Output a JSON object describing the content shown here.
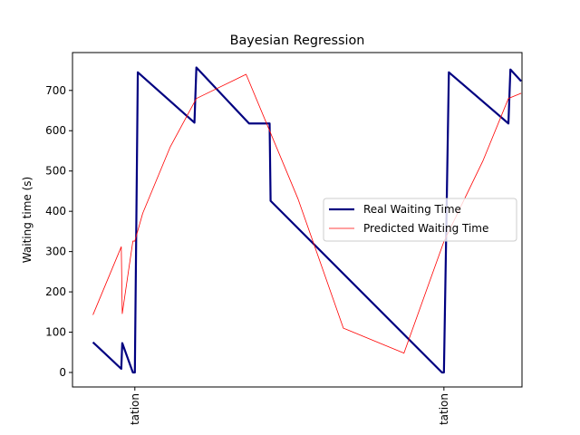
{
  "chart_data": {
    "type": "line",
    "title": "Bayesian Regression",
    "ylabel": "Waiting time (s)",
    "xlabel": "",
    "ylim": [
      -36,
      794
    ],
    "xlim": [
      0,
      100
    ],
    "yticks": [
      0,
      100,
      200,
      300,
      400,
      500,
      600,
      700
    ],
    "xticks": [
      {
        "x": 13.87,
        "label": "tation"
      },
      {
        "x": 82.63,
        "label": "tation"
      }
    ],
    "legend_position": "center-right",
    "grid": false,
    "series": [
      {
        "name": "Real Waiting Time",
        "color": "#000080",
        "points": [
          [
            4.55,
            75
          ],
          [
            10.85,
            9
          ],
          [
            11.07,
            73
          ],
          [
            13.43,
            0
          ],
          [
            13.65,
            0
          ],
          [
            13.87,
            0
          ],
          [
            14.53,
            745
          ],
          [
            27.13,
            620
          ],
          [
            27.56,
            757
          ],
          [
            39.28,
            618
          ],
          [
            43.85,
            618
          ],
          [
            44.07,
            426
          ],
          [
            82.19,
            0
          ],
          [
            82.63,
            0
          ],
          [
            83.73,
            745
          ],
          [
            96.98,
            618
          ],
          [
            97.42,
            752
          ],
          [
            99.82,
            723
          ]
        ]
      },
      {
        "name": "Predicted Waiting Time",
        "color": "#ff0000",
        "points": [
          [
            4.55,
            143
          ],
          [
            10.85,
            312
          ],
          [
            11.07,
            146
          ],
          [
            13.43,
            326
          ],
          [
            13.87,
            326
          ],
          [
            15.62,
            395
          ],
          [
            21.75,
            560
          ],
          [
            27.56,
            680
          ],
          [
            38.62,
            740
          ],
          [
            50.2,
            430
          ],
          [
            60.26,
            110
          ],
          [
            73.74,
            48
          ],
          [
            82.63,
            325
          ],
          [
            91.3,
            525
          ],
          [
            96.98,
            680
          ],
          [
            99.82,
            693
          ]
        ]
      }
    ]
  }
}
